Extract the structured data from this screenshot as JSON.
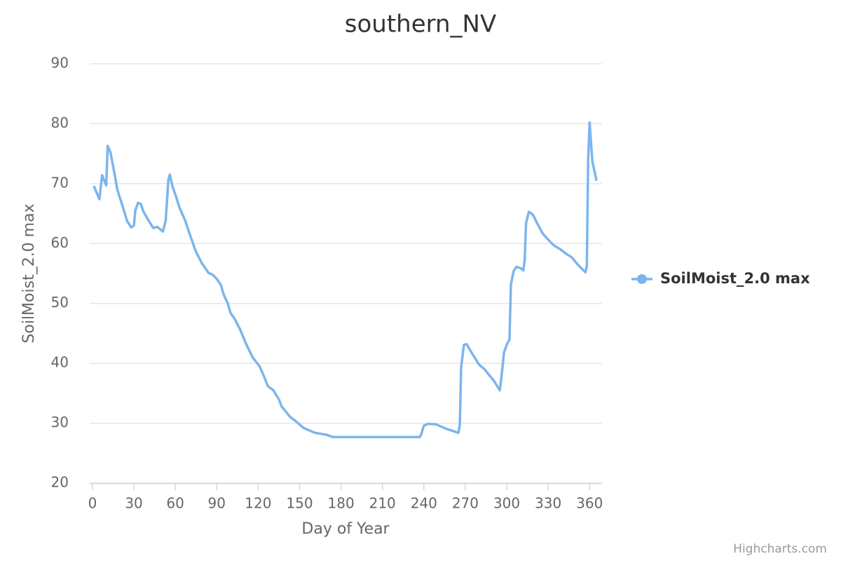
{
  "chart_data": {
    "type": "line",
    "title": "southern_NV",
    "x_label": "Day of Year",
    "y_label": "SoilMoist_2.0 max",
    "credits": "Highcharts.com",
    "legend_position": "right",
    "grid": true,
    "xlim": [
      -2,
      369
    ],
    "xticks": [
      0,
      30,
      60,
      90,
      120,
      150,
      180,
      210,
      240,
      270,
      300,
      330,
      360
    ],
    "ylim": [
      20,
      90
    ],
    "yticks": [
      20,
      30,
      40,
      50,
      60,
      70,
      80,
      90
    ],
    "x": [
      1,
      5,
      7,
      8,
      10,
      11,
      13,
      16,
      18,
      22,
      25,
      28,
      30,
      31,
      33,
      35,
      37,
      41,
      44,
      47,
      51,
      53,
      55,
      56,
      58,
      60,
      63,
      67,
      71,
      75,
      79,
      84,
      87,
      90,
      93,
      95,
      98,
      100,
      103,
      107,
      111,
      113,
      116,
      121,
      123,
      127,
      131,
      135,
      137,
      143,
      148,
      153,
      161,
      169,
      174,
      237,
      238,
      240,
      243,
      249,
      256,
      265,
      266,
      267,
      269,
      271,
      274,
      280,
      284,
      291,
      295,
      296,
      298,
      300,
      302,
      303,
      305,
      307,
      310,
      312,
      313,
      314,
      316,
      319,
      322,
      326,
      329,
      334,
      339,
      343,
      347,
      351,
      357,
      358,
      359,
      360,
      362,
      365
    ],
    "series": [
      {
        "name": "SoilMoist_2.0 max",
        "color": "#7cb5ec",
        "values": [
          69.6,
          67.4,
          71.4,
          70.8,
          69.7,
          76.3,
          75.2,
          71.6,
          69,
          66.1,
          63.8,
          62.7,
          63,
          65.5,
          66.8,
          66.6,
          65.3,
          63.7,
          62.6,
          62.8,
          62,
          63.8,
          70.7,
          71.5,
          69.5,
          68.2,
          66,
          63.9,
          61.2,
          58.6,
          56.8,
          55.1,
          54.8,
          54.1,
          53.1,
          51.5,
          50,
          48.4,
          47.4,
          45.6,
          43.4,
          42.4,
          41,
          39.5,
          38.5,
          36.2,
          35.5,
          34,
          32.8,
          31.1,
          30.2,
          29.2,
          28.4,
          28.1,
          27.7,
          27.7,
          28.1,
          29.6,
          29.9,
          29.8,
          29.1,
          28.4,
          29.7,
          39.4,
          43.1,
          43.2,
          42,
          39.8,
          39,
          37,
          35.5,
          37.4,
          41.8,
          43.1,
          44,
          53.2,
          55.4,
          56.1,
          55.9,
          55.5,
          57.3,
          63.4,
          65.3,
          64.8,
          63.4,
          61.7,
          60.9,
          59.7,
          59,
          58.3,
          57.7,
          56.6,
          55.2,
          56.2,
          74.3,
          80.2,
          73.7,
          70.5
        ]
      }
    ]
  }
}
